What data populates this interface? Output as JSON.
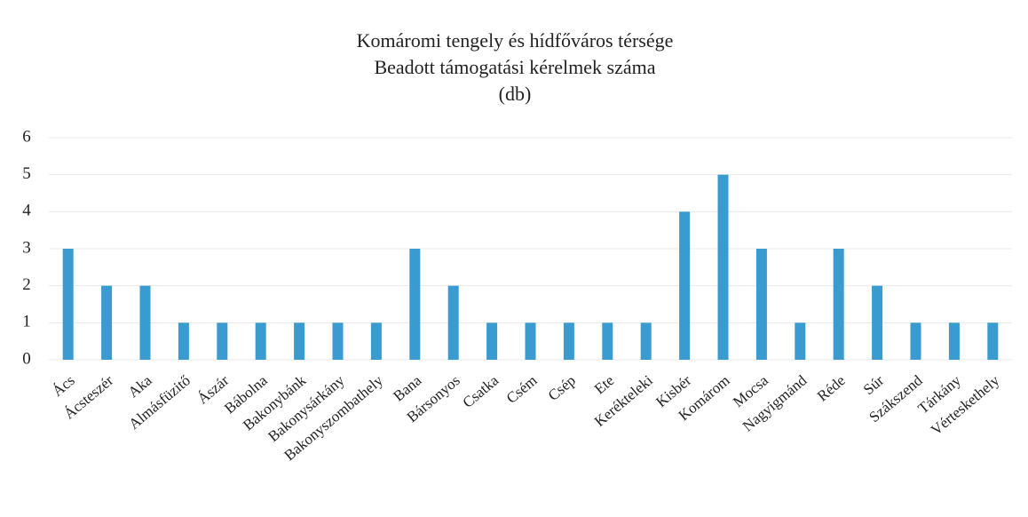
{
  "chart_data": {
    "type": "bar",
    "title": [
      "Komáromi tengely és hídfőváros térsége",
      "Beadott támogatási kérelmek száma",
      "(db)"
    ],
    "categories": [
      "Ács",
      "Ácsteszér",
      "Aka",
      "Almásfüzitő",
      "Ászár",
      "Bábolna",
      "Bakonybánk",
      "Bakonysárkány",
      "Bakonyszombathely",
      "Bana",
      "Bársonyos",
      "Csatka",
      "Csém",
      "Csép",
      "Ete",
      "Kerékteleki",
      "Kisbér",
      "Komárom",
      "Mocsa",
      "Nagyigmánd",
      "Réde",
      "Súr",
      "Szákszend",
      "Tárkány",
      "Vérteskethely"
    ],
    "values": [
      3,
      2,
      2,
      1,
      1,
      1,
      1,
      1,
      1,
      3,
      2,
      1,
      1,
      1,
      1,
      1,
      4,
      5,
      3,
      1,
      3,
      2,
      1,
      1,
      1
    ],
    "color": "#3a9bd0",
    "ylim": [
      0,
      6
    ],
    "yticks": [
      0,
      1,
      2,
      3,
      4,
      5,
      6
    ],
    "grid": true
  }
}
